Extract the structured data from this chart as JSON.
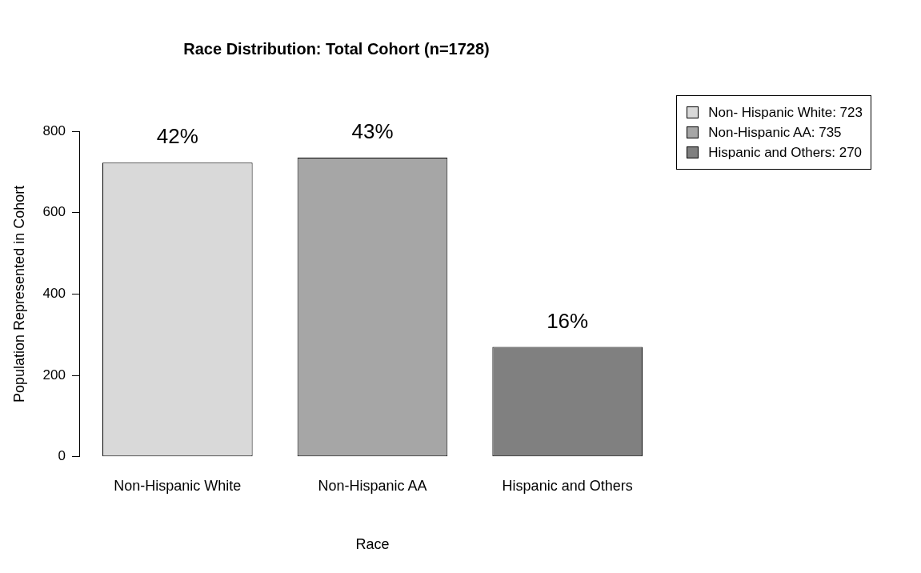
{
  "chart_data": {
    "type": "bar",
    "title": "Race Distribution: Total Cohort (n=1728)",
    "xlabel": "Race",
    "ylabel": "Population Represented in Cohort",
    "categories": [
      "Non-Hispanic White",
      "Non-Hispanic AA",
      "Hispanic and Others"
    ],
    "stacked": true,
    "series": [
      {
        "name": "Non- Hispanic White: 723",
        "color": "#d9d9d9",
        "values": [
          723,
          null,
          null
        ]
      },
      {
        "name": "Non-Hispanic AA: 735",
        "color": "#a6a6a6",
        "values": [
          null,
          735,
          null
        ]
      },
      {
        "name": "Hispanic and Others: 270",
        "color": "#808080",
        "values": [
          null,
          null,
          270
        ]
      }
    ],
    "annotations": [
      {
        "text": "42%",
        "x": "Non-Hispanic White",
        "y": 723
      },
      {
        "text": "43%",
        "x": "Non-Hispanic AA",
        "y": 735
      },
      {
        "text": "16%",
        "x": "Hispanic and Others",
        "y": 270
      }
    ],
    "ylim": [
      0,
      800
    ],
    "yticks": [
      0,
      200,
      400,
      600,
      800
    ],
    "grid": false,
    "legend": "top right"
  }
}
